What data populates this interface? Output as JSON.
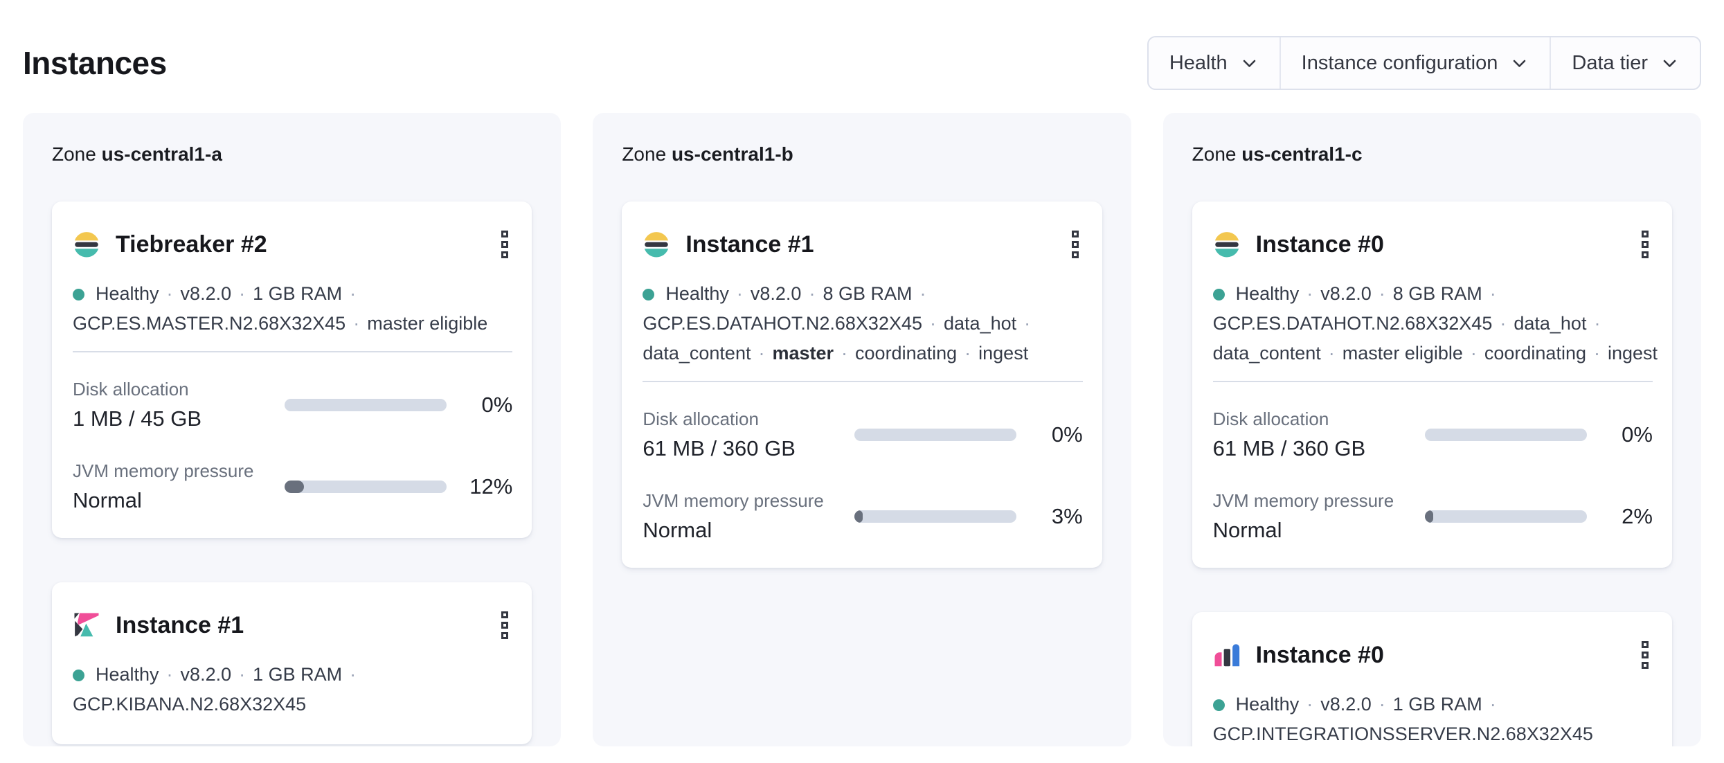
{
  "page": {
    "title": "Instances"
  },
  "filters": [
    {
      "label": "Health"
    },
    {
      "label": "Instance configuration"
    },
    {
      "label": "Data tier"
    }
  ],
  "colors": {
    "health_dot": "#3CA294",
    "bar_track": "#D5DBE6",
    "bar_fill": "#69707D",
    "panel_bg": "#F6F7FB",
    "es_yellow": "#F3C74F",
    "es_dark": "#343741",
    "es_teal": "#46BBAD",
    "kibana_pink": "#F04E98",
    "integrations_blue": "#3A7BD9"
  },
  "zones": [
    {
      "prefix": "Zone",
      "name": "us-central1-a",
      "cards": [
        {
          "icon": "elasticsearch-logo",
          "title": "Tiebreaker #2",
          "meta": [
            {
              "dot": true,
              "parts": [
                {
                  "t": "Healthy"
                },
                {
                  "sep": true
                },
                {
                  "t": "v8.2.0"
                },
                {
                  "sep": true
                },
                {
                  "t": "1 GB RAM"
                },
                {
                  "sep": true
                }
              ]
            },
            {
              "parts": [
                {
                  "t": "GCP.ES.MASTER.N2.68X32X45"
                },
                {
                  "sep": true
                },
                {
                  "t": "master eligible"
                }
              ]
            }
          ],
          "metrics": [
            {
              "label": "Disk allocation",
              "value": "1 MB / 45 GB",
              "percent": "0%",
              "fill": 0
            },
            {
              "label": "JVM memory pressure",
              "value": "Normal",
              "percent": "12%",
              "fill": 12
            }
          ]
        },
        {
          "icon": "kibana-logo",
          "title": "Instance #1",
          "meta": [
            {
              "dot": true,
              "parts": [
                {
                  "t": "Healthy"
                },
                {
                  "sep": true
                },
                {
                  "t": "v8.2.0"
                },
                {
                  "sep": true
                },
                {
                  "t": "1 GB RAM"
                },
                {
                  "sep": true
                }
              ]
            },
            {
              "parts": [
                {
                  "t": "GCP.KIBANA.N2.68X32X45"
                }
              ]
            }
          ],
          "metrics": []
        }
      ]
    },
    {
      "prefix": "Zone",
      "name": "us-central1-b",
      "cards": [
        {
          "icon": "elasticsearch-logo",
          "title": "Instance #1",
          "meta": [
            {
              "dot": true,
              "parts": [
                {
                  "t": "Healthy"
                },
                {
                  "sep": true
                },
                {
                  "t": "v8.2.0"
                },
                {
                  "sep": true
                },
                {
                  "t": "8 GB RAM"
                },
                {
                  "sep": true
                }
              ]
            },
            {
              "parts": [
                {
                  "t": "GCP.ES.DATAHOT.N2.68X32X45"
                },
                {
                  "sep": true
                },
                {
                  "t": "data_hot"
                },
                {
                  "sep": true
                }
              ]
            },
            {
              "parts": [
                {
                  "t": "data_content"
                },
                {
                  "sep": true
                },
                {
                  "t": "master",
                  "b": true
                },
                {
                  "sep": true
                },
                {
                  "t": "coordinating"
                },
                {
                  "sep": true
                },
                {
                  "t": "ingest"
                }
              ]
            }
          ],
          "metrics": [
            {
              "label": "Disk allocation",
              "value": "61 MB / 360 GB",
              "percent": "0%",
              "fill": 0
            },
            {
              "label": "JVM memory pressure",
              "value": "Normal",
              "percent": "3%",
              "fill": 3
            }
          ]
        }
      ]
    },
    {
      "prefix": "Zone",
      "name": "us-central1-c",
      "cards": [
        {
          "icon": "elasticsearch-logo",
          "title": "Instance #0",
          "meta": [
            {
              "dot": true,
              "parts": [
                {
                  "t": "Healthy"
                },
                {
                  "sep": true
                },
                {
                  "t": "v8.2.0"
                },
                {
                  "sep": true
                },
                {
                  "t": "8 GB RAM"
                },
                {
                  "sep": true
                }
              ]
            },
            {
              "parts": [
                {
                  "t": "GCP.ES.DATAHOT.N2.68X32X45"
                },
                {
                  "sep": true
                },
                {
                  "t": "data_hot"
                },
                {
                  "sep": true
                }
              ]
            },
            {
              "parts": [
                {
                  "t": "data_content"
                },
                {
                  "sep": true
                },
                {
                  "t": "master eligible"
                },
                {
                  "sep": true
                },
                {
                  "t": "coordinating"
                },
                {
                  "sep": true
                },
                {
                  "t": "ingest"
                }
              ]
            }
          ],
          "metrics": [
            {
              "label": "Disk allocation",
              "value": "61 MB / 360 GB",
              "percent": "0%",
              "fill": 0
            },
            {
              "label": "JVM memory pressure",
              "value": "Normal",
              "percent": "2%",
              "fill": 2
            }
          ]
        },
        {
          "icon": "integrations-server-logo",
          "title": "Instance #0",
          "meta": [
            {
              "dot": true,
              "parts": [
                {
                  "t": "Healthy"
                },
                {
                  "sep": true
                },
                {
                  "t": "v8.2.0"
                },
                {
                  "sep": true
                },
                {
                  "t": "1 GB RAM"
                },
                {
                  "sep": true
                }
              ]
            },
            {
              "parts": [
                {
                  "t": "GCP.INTEGRATIONSSERVER.N2.68X32X45"
                }
              ]
            }
          ],
          "metrics": []
        }
      ]
    }
  ]
}
